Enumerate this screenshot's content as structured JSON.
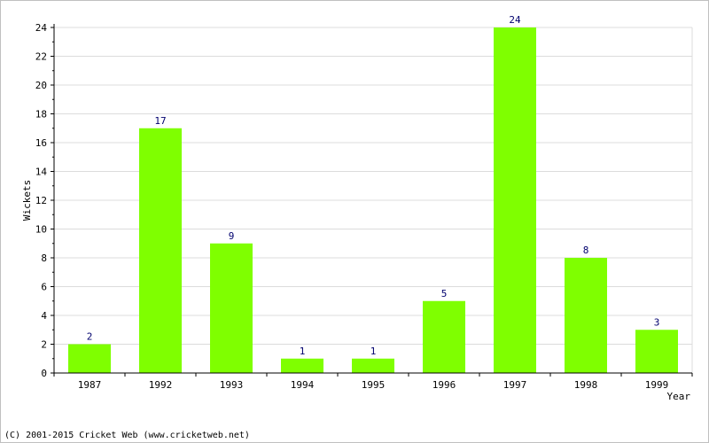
{
  "chart_data": {
    "type": "bar",
    "categories": [
      "1987",
      "1992",
      "1993",
      "1994",
      "1995",
      "1996",
      "1997",
      "1998",
      "1999"
    ],
    "values": [
      2,
      17,
      9,
      1,
      1,
      5,
      24,
      8,
      3
    ],
    "data_labels": [
      "2",
      "17",
      "9",
      "1",
      "1",
      "5",
      "24",
      "8",
      "3"
    ],
    "xlabel": "Year",
    "ylabel": "Wickets",
    "ylim": [
      0,
      24
    ],
    "yticks": [
      "0",
      "2",
      "4",
      "6",
      "8",
      "10",
      "12",
      "14",
      "16",
      "18",
      "20",
      "22",
      "24"
    ],
    "grid": true,
    "colors": {
      "bar": "#7fff00",
      "label": "#00006e",
      "grid": "#dcdcdc",
      "axis": "#000000"
    }
  },
  "footer": {
    "text": "(C) 2001-2015 Cricket Web (www.cricketweb.net)"
  }
}
